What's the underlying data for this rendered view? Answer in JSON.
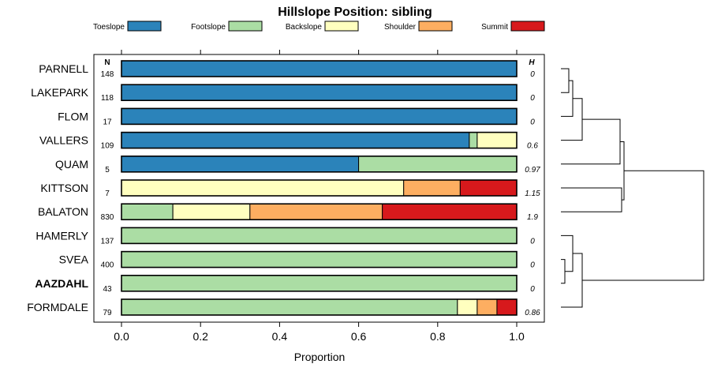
{
  "chart_data": {
    "type": "bar",
    "orientation": "horizontal-stacked",
    "title": "Hillslope Position: sibling",
    "xlabel": "Proportion",
    "xlim": [
      0,
      1
    ],
    "xticks": [
      "0.0",
      "0.2",
      "0.4",
      "0.6",
      "0.8",
      "1.0"
    ],
    "n_header": "N",
    "h_header": "H",
    "legend": [
      {
        "name": "Toeslope",
        "color": "#2b83ba"
      },
      {
        "name": "Footslope",
        "color": "#abdda4"
      },
      {
        "name": "Backslope",
        "color": "#ffffbf"
      },
      {
        "name": "Shoulder",
        "color": "#fdae61"
      },
      {
        "name": "Summit",
        "color": "#d7191c"
      }
    ],
    "rows": [
      {
        "label": "PARNELL",
        "bold": false,
        "n": "148",
        "h": "0",
        "values": [
          1.0,
          0,
          0,
          0,
          0
        ]
      },
      {
        "label": "LAKEPARK",
        "bold": false,
        "n": "118",
        "h": "0",
        "values": [
          1.0,
          0,
          0,
          0,
          0
        ]
      },
      {
        "label": "FLOM",
        "bold": false,
        "n": "17",
        "h": "0",
        "values": [
          1.0,
          0,
          0,
          0,
          0
        ]
      },
      {
        "label": "VALLERS",
        "bold": false,
        "n": "109",
        "h": "0.6",
        "values": [
          0.88,
          0.02,
          0.1,
          0,
          0
        ]
      },
      {
        "label": "QUAM",
        "bold": false,
        "n": "5",
        "h": "0.97",
        "values": [
          0.6,
          0.4,
          0,
          0,
          0
        ]
      },
      {
        "label": "KITTSON",
        "bold": false,
        "n": "7",
        "h": "1.15",
        "values": [
          0,
          0,
          0.714,
          0.143,
          0.143
        ]
      },
      {
        "label": "BALATON",
        "bold": false,
        "n": "830",
        "h": "1.9",
        "values": [
          0,
          0.13,
          0.195,
          0.335,
          0.34
        ]
      },
      {
        "label": "HAMERLY",
        "bold": false,
        "n": "137",
        "h": "0",
        "values": [
          0,
          1.0,
          0,
          0,
          0
        ]
      },
      {
        "label": "SVEA",
        "bold": false,
        "n": "400",
        "h": "0",
        "values": [
          0,
          1.0,
          0,
          0,
          0
        ]
      },
      {
        "label": "AAZDAHL",
        "bold": true,
        "n": "43",
        "h": "0",
        "values": [
          0,
          1.0,
          0,
          0,
          0
        ]
      },
      {
        "label": "FORMDALE",
        "bold": false,
        "n": "79",
        "h": "0.86",
        "values": [
          0,
          0.85,
          0.05,
          0.05,
          0.05
        ]
      }
    ]
  }
}
